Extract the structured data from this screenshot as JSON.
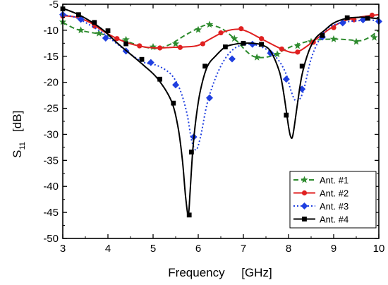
{
  "chart_data": {
    "type": "line",
    "title": "",
    "xlabel": "Frequency     [GHz]",
    "ylabel_main": "S",
    "ylabel_sub": "11",
    "ylabel_unit": "[dB]",
    "xlim": [
      3,
      10
    ],
    "ylim": [
      -50,
      -5
    ],
    "xticks": [
      3,
      4,
      5,
      6,
      7,
      8,
      9,
      10
    ],
    "yticks": [
      -50,
      -45,
      -40,
      -35,
      -30,
      -25,
      -20,
      -15,
      -10,
      -5
    ],
    "grid": false,
    "legend_position": "bottom-right",
    "series": [
      {
        "name": "Ant. #1",
        "color": "#2e8b2e",
        "dash": "dashed",
        "marker": "star",
        "x": [
          3.0,
          3.3,
          3.6,
          3.9,
          4.2,
          4.5,
          4.8,
          5.1,
          5.4,
          5.7,
          6.0,
          6.2,
          6.5,
          6.8,
          7.1,
          7.3,
          7.6,
          7.9,
          8.1,
          8.4,
          8.7,
          9.0,
          9.3,
          9.6,
          9.8,
          10.0
        ],
        "y": [
          -8.5,
          -9.8,
          -10.4,
          -10.8,
          -11.6,
          -12.4,
          -13.2,
          -13.5,
          -12.6,
          -11.0,
          -9.6,
          -9.0,
          -9.6,
          -11.6,
          -14.3,
          -15.2,
          -15.0,
          -13.8,
          -13.0,
          -12.2,
          -11.8,
          -11.7,
          -11.8,
          -12.0,
          -11.3,
          -10.0
        ],
        "marker_x": [
          3.0,
          3.4,
          3.8,
          4.4,
          5.0,
          5.5,
          6.0,
          6.25,
          6.8,
          7.3,
          7.75,
          8.2,
          8.5,
          9.0,
          9.5,
          9.9
        ],
        "marker_y": [
          -8.4,
          -10.0,
          -10.6,
          -11.8,
          -13.2,
          -12.6,
          -9.9,
          -8.9,
          -11.6,
          -15.2,
          -14.6,
          -13.0,
          -12.2,
          -11.7,
          -12.2,
          -11.4
        ]
      },
      {
        "name": "Ant. #2",
        "color": "#e02020",
        "dash": "solid",
        "marker": "circle",
        "x": [
          3.0,
          3.3,
          3.6,
          3.9,
          4.2,
          4.5,
          4.8,
          5.1,
          5.4,
          5.7,
          6.0,
          6.3,
          6.6,
          6.9,
          7.1,
          7.3,
          7.5,
          7.7,
          7.9,
          8.1,
          8.3,
          8.6,
          8.9,
          9.2,
          9.5,
          9.8,
          10.0
        ],
        "y": [
          -7.2,
          -7.5,
          -8.5,
          -10.2,
          -11.6,
          -12.6,
          -13.2,
          -13.4,
          -13.3,
          -13.2,
          -12.9,
          -11.5,
          -10.2,
          -9.8,
          -10.3,
          -11.2,
          -12.1,
          -13.0,
          -13.8,
          -14.3,
          -13.7,
          -11.8,
          -9.8,
          -8.3,
          -7.6,
          -7.2,
          -7.0
        ],
        "marker_x": [
          3.0,
          3.7,
          4.2,
          4.7,
          5.15,
          5.6,
          6.1,
          6.5,
          6.95,
          7.4,
          7.85,
          8.2,
          8.55,
          9.0,
          9.45,
          9.85
        ],
        "marker_y": [
          -7.3,
          -9.2,
          -11.6,
          -13.0,
          -13.4,
          -13.3,
          -12.6,
          -10.5,
          -9.7,
          -11.6,
          -13.6,
          -14.2,
          -12.3,
          -9.5,
          -8.0,
          -7.1
        ]
      },
      {
        "name": "Ant. #3",
        "color": "#1f3fe0",
        "dash": "dotted",
        "marker": "diamond",
        "x": [
          3.0,
          3.3,
          3.6,
          3.9,
          4.2,
          4.5,
          4.8,
          5.1,
          5.4,
          5.6,
          5.75,
          5.85,
          5.95,
          6.05,
          6.2,
          6.4,
          6.6,
          6.8,
          7.0,
          7.2,
          7.4,
          7.6,
          7.8,
          7.95,
          8.05,
          8.15,
          8.25,
          8.35,
          8.5,
          8.7,
          8.9,
          9.2,
          9.5,
          9.8,
          10.0
        ],
        "y": [
          -7.0,
          -7.6,
          -9.0,
          -10.6,
          -12.6,
          -14.6,
          -16.2,
          -16.8,
          -18.5,
          -21.5,
          -26.0,
          -31.0,
          -33.0,
          -30.5,
          -24.0,
          -18.8,
          -15.4,
          -13.5,
          -12.8,
          -12.7,
          -13.2,
          -14.2,
          -16.0,
          -18.5,
          -21.5,
          -23.5,
          -23.2,
          -21.0,
          -15.5,
          -11.5,
          -9.4,
          -8.5,
          -8.2,
          -8.0,
          -8.3
        ],
        "marker_x": [
          3.0,
          3.4,
          3.95,
          4.4,
          4.95,
          5.5,
          5.9,
          6.25,
          6.75,
          7.2,
          7.6,
          7.95,
          8.3,
          8.75,
          9.2,
          9.65,
          10.0
        ],
        "marker_y": [
          -7.0,
          -7.9,
          -11.5,
          -14.0,
          -16.2,
          -20.5,
          -30.5,
          -23.0,
          -15.5,
          -12.7,
          -14.4,
          -19.4,
          -21.3,
          -11.3,
          -8.6,
          -8.0,
          -8.3
        ]
      },
      {
        "name": "Ant. #4",
        "color": "#000000",
        "dash": "solid",
        "marker": "square",
        "x": [
          3.0,
          3.3,
          3.6,
          3.9,
          4.2,
          4.5,
          4.8,
          5.1,
          5.4,
          5.55,
          5.65,
          5.72,
          5.78,
          5.82,
          5.88,
          5.95,
          6.05,
          6.2,
          6.4,
          6.6,
          6.8,
          7.0,
          7.2,
          7.4,
          7.6,
          7.8,
          7.9,
          8.0,
          8.05,
          8.1,
          8.2,
          8.3,
          8.45,
          8.6,
          8.8,
          9.0,
          9.3,
          9.6,
          9.8,
          10.0
        ],
        "y": [
          -5.8,
          -6.8,
          -8.2,
          -10.0,
          -12.4,
          -14.6,
          -16.8,
          -19.3,
          -23.5,
          -28.5,
          -35.0,
          -42.0,
          -45.5,
          -41.0,
          -33.0,
          -27.0,
          -21.5,
          -17.0,
          -14.8,
          -13.2,
          -12.7,
          -12.5,
          -12.5,
          -12.8,
          -14.0,
          -18.0,
          -22.5,
          -28.5,
          -30.5,
          -30.0,
          -24.0,
          -18.5,
          -14.0,
          -11.5,
          -10.0,
          -8.6,
          -7.7,
          -7.5,
          -7.6,
          -7.8
        ],
        "marker_x": [
          3.0,
          3.35,
          3.7,
          4.0,
          4.4,
          4.75,
          5.15,
          5.45,
          5.8,
          5.85,
          6.15,
          6.6,
          7.0,
          7.4,
          7.95,
          8.3,
          8.75,
          9.3,
          9.75
        ],
        "marker_y": [
          -5.9,
          -7.0,
          -8.5,
          -10.1,
          -12.6,
          -15.6,
          -19.4,
          -24.0,
          -45.5,
          -33.4,
          -16.9,
          -13.2,
          -12.5,
          -12.7,
          -26.3,
          -16.9,
          -11.0,
          -7.6,
          -7.7
        ]
      }
    ]
  }
}
